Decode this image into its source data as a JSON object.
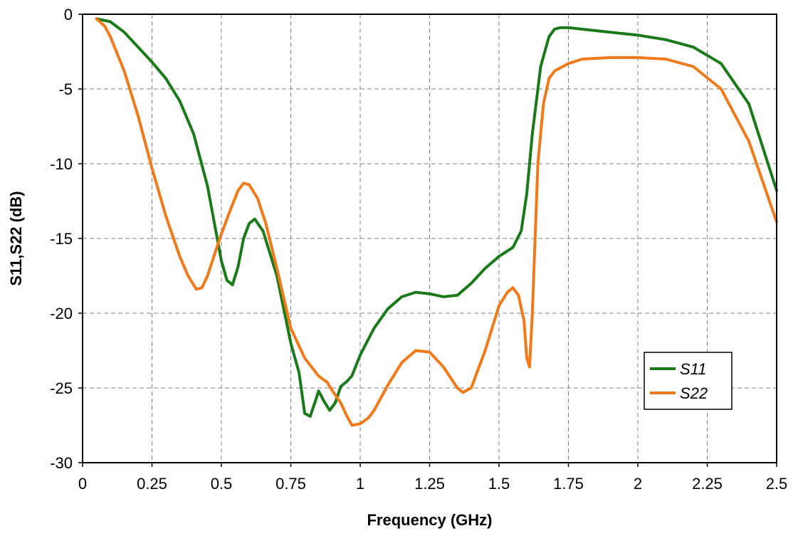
{
  "chart_data": {
    "type": "line",
    "title": "",
    "xlabel": "Frequency (GHz)",
    "ylabel": "S11,S22 (dB)",
    "xlim": [
      0,
      2.5
    ],
    "ylim": [
      -30,
      0
    ],
    "xticks": [
      0,
      0.25,
      0.5,
      0.75,
      1,
      1.25,
      1.5,
      1.75,
      2,
      2.25,
      2.5
    ],
    "yticks": [
      0,
      -5,
      -10,
      -15,
      -20,
      -25,
      -30
    ],
    "xtick_labels": [
      "0",
      "0.25",
      "0.5",
      "0.75",
      "1",
      "1.25",
      "1.5",
      "1.75",
      "2",
      "2.25",
      "2.5"
    ],
    "ytick_labels": [
      "0",
      "-5",
      "-10",
      "-15",
      "-20",
      "-25",
      "-30"
    ],
    "grid": true,
    "legend_position": "bottom-right",
    "series": [
      {
        "name": "S11",
        "color": "#1a7a1a",
        "x": [
          0.05,
          0.1,
          0.15,
          0.2,
          0.25,
          0.3,
          0.35,
          0.4,
          0.45,
          0.48,
          0.5,
          0.52,
          0.54,
          0.56,
          0.58,
          0.6,
          0.62,
          0.65,
          0.7,
          0.75,
          0.78,
          0.8,
          0.82,
          0.84,
          0.85,
          0.87,
          0.89,
          0.91,
          0.93,
          0.95,
          0.97,
          1.0,
          1.05,
          1.1,
          1.15,
          1.2,
          1.25,
          1.3,
          1.35,
          1.4,
          1.45,
          1.5,
          1.55,
          1.58,
          1.6,
          1.62,
          1.65,
          1.68,
          1.7,
          1.72,
          1.75,
          1.8,
          1.9,
          2.0,
          2.1,
          2.2,
          2.3,
          2.4,
          2.5
        ],
        "values": [
          -0.3,
          -0.5,
          -1.2,
          -2.2,
          -3.2,
          -4.3,
          -5.8,
          -8.0,
          -11.5,
          -14.5,
          -16.5,
          -17.8,
          -18.1,
          -16.9,
          -15.0,
          -14.0,
          -13.7,
          -14.5,
          -17.5,
          -22.0,
          -24.0,
          -26.7,
          -26.9,
          -25.8,
          -25.2,
          -25.9,
          -26.5,
          -26.0,
          -24.9,
          -24.6,
          -24.2,
          -22.8,
          -21.0,
          -19.7,
          -18.9,
          -18.6,
          -18.7,
          -18.9,
          -18.8,
          -18.0,
          -17.0,
          -16.2,
          -15.6,
          -14.5,
          -12.0,
          -8.0,
          -3.5,
          -1.5,
          -1.0,
          -0.9,
          -0.9,
          -1.0,
          -1.2,
          -1.4,
          -1.7,
          -2.2,
          -3.3,
          -6.0,
          -11.8
        ]
      },
      {
        "name": "S22",
        "color": "#f07a1a",
        "x": [
          0.05,
          0.08,
          0.1,
          0.15,
          0.2,
          0.25,
          0.3,
          0.35,
          0.38,
          0.41,
          0.43,
          0.45,
          0.48,
          0.5,
          0.53,
          0.56,
          0.58,
          0.6,
          0.63,
          0.66,
          0.7,
          0.75,
          0.8,
          0.85,
          0.88,
          0.9,
          0.93,
          0.95,
          0.97,
          1.0,
          1.03,
          1.05,
          1.1,
          1.15,
          1.2,
          1.25,
          1.3,
          1.35,
          1.37,
          1.4,
          1.45,
          1.5,
          1.53,
          1.55,
          1.57,
          1.59,
          1.6,
          1.61,
          1.62,
          1.64,
          1.66,
          1.68,
          1.7,
          1.75,
          1.8,
          1.9,
          2.0,
          2.1,
          2.2,
          2.3,
          2.4,
          2.5
        ],
        "values": [
          -0.3,
          -0.8,
          -1.5,
          -3.8,
          -6.8,
          -10.3,
          -13.5,
          -16.2,
          -17.5,
          -18.4,
          -18.3,
          -17.5,
          -15.8,
          -14.7,
          -13.2,
          -11.8,
          -11.3,
          -11.4,
          -12.3,
          -14.0,
          -17.0,
          -21.0,
          -23.0,
          -24.2,
          -24.6,
          -25.2,
          -26.0,
          -26.8,
          -27.5,
          -27.4,
          -27.0,
          -26.5,
          -24.8,
          -23.3,
          -22.5,
          -22.6,
          -23.6,
          -25.0,
          -25.3,
          -25.0,
          -22.5,
          -19.5,
          -18.6,
          -18.3,
          -18.8,
          -20.5,
          -23.0,
          -23.6,
          -20.0,
          -10.0,
          -6.0,
          -4.3,
          -3.8,
          -3.3,
          -3.0,
          -2.9,
          -2.9,
          -3.0,
          -3.5,
          -5.0,
          -8.5,
          -13.9
        ]
      }
    ]
  }
}
